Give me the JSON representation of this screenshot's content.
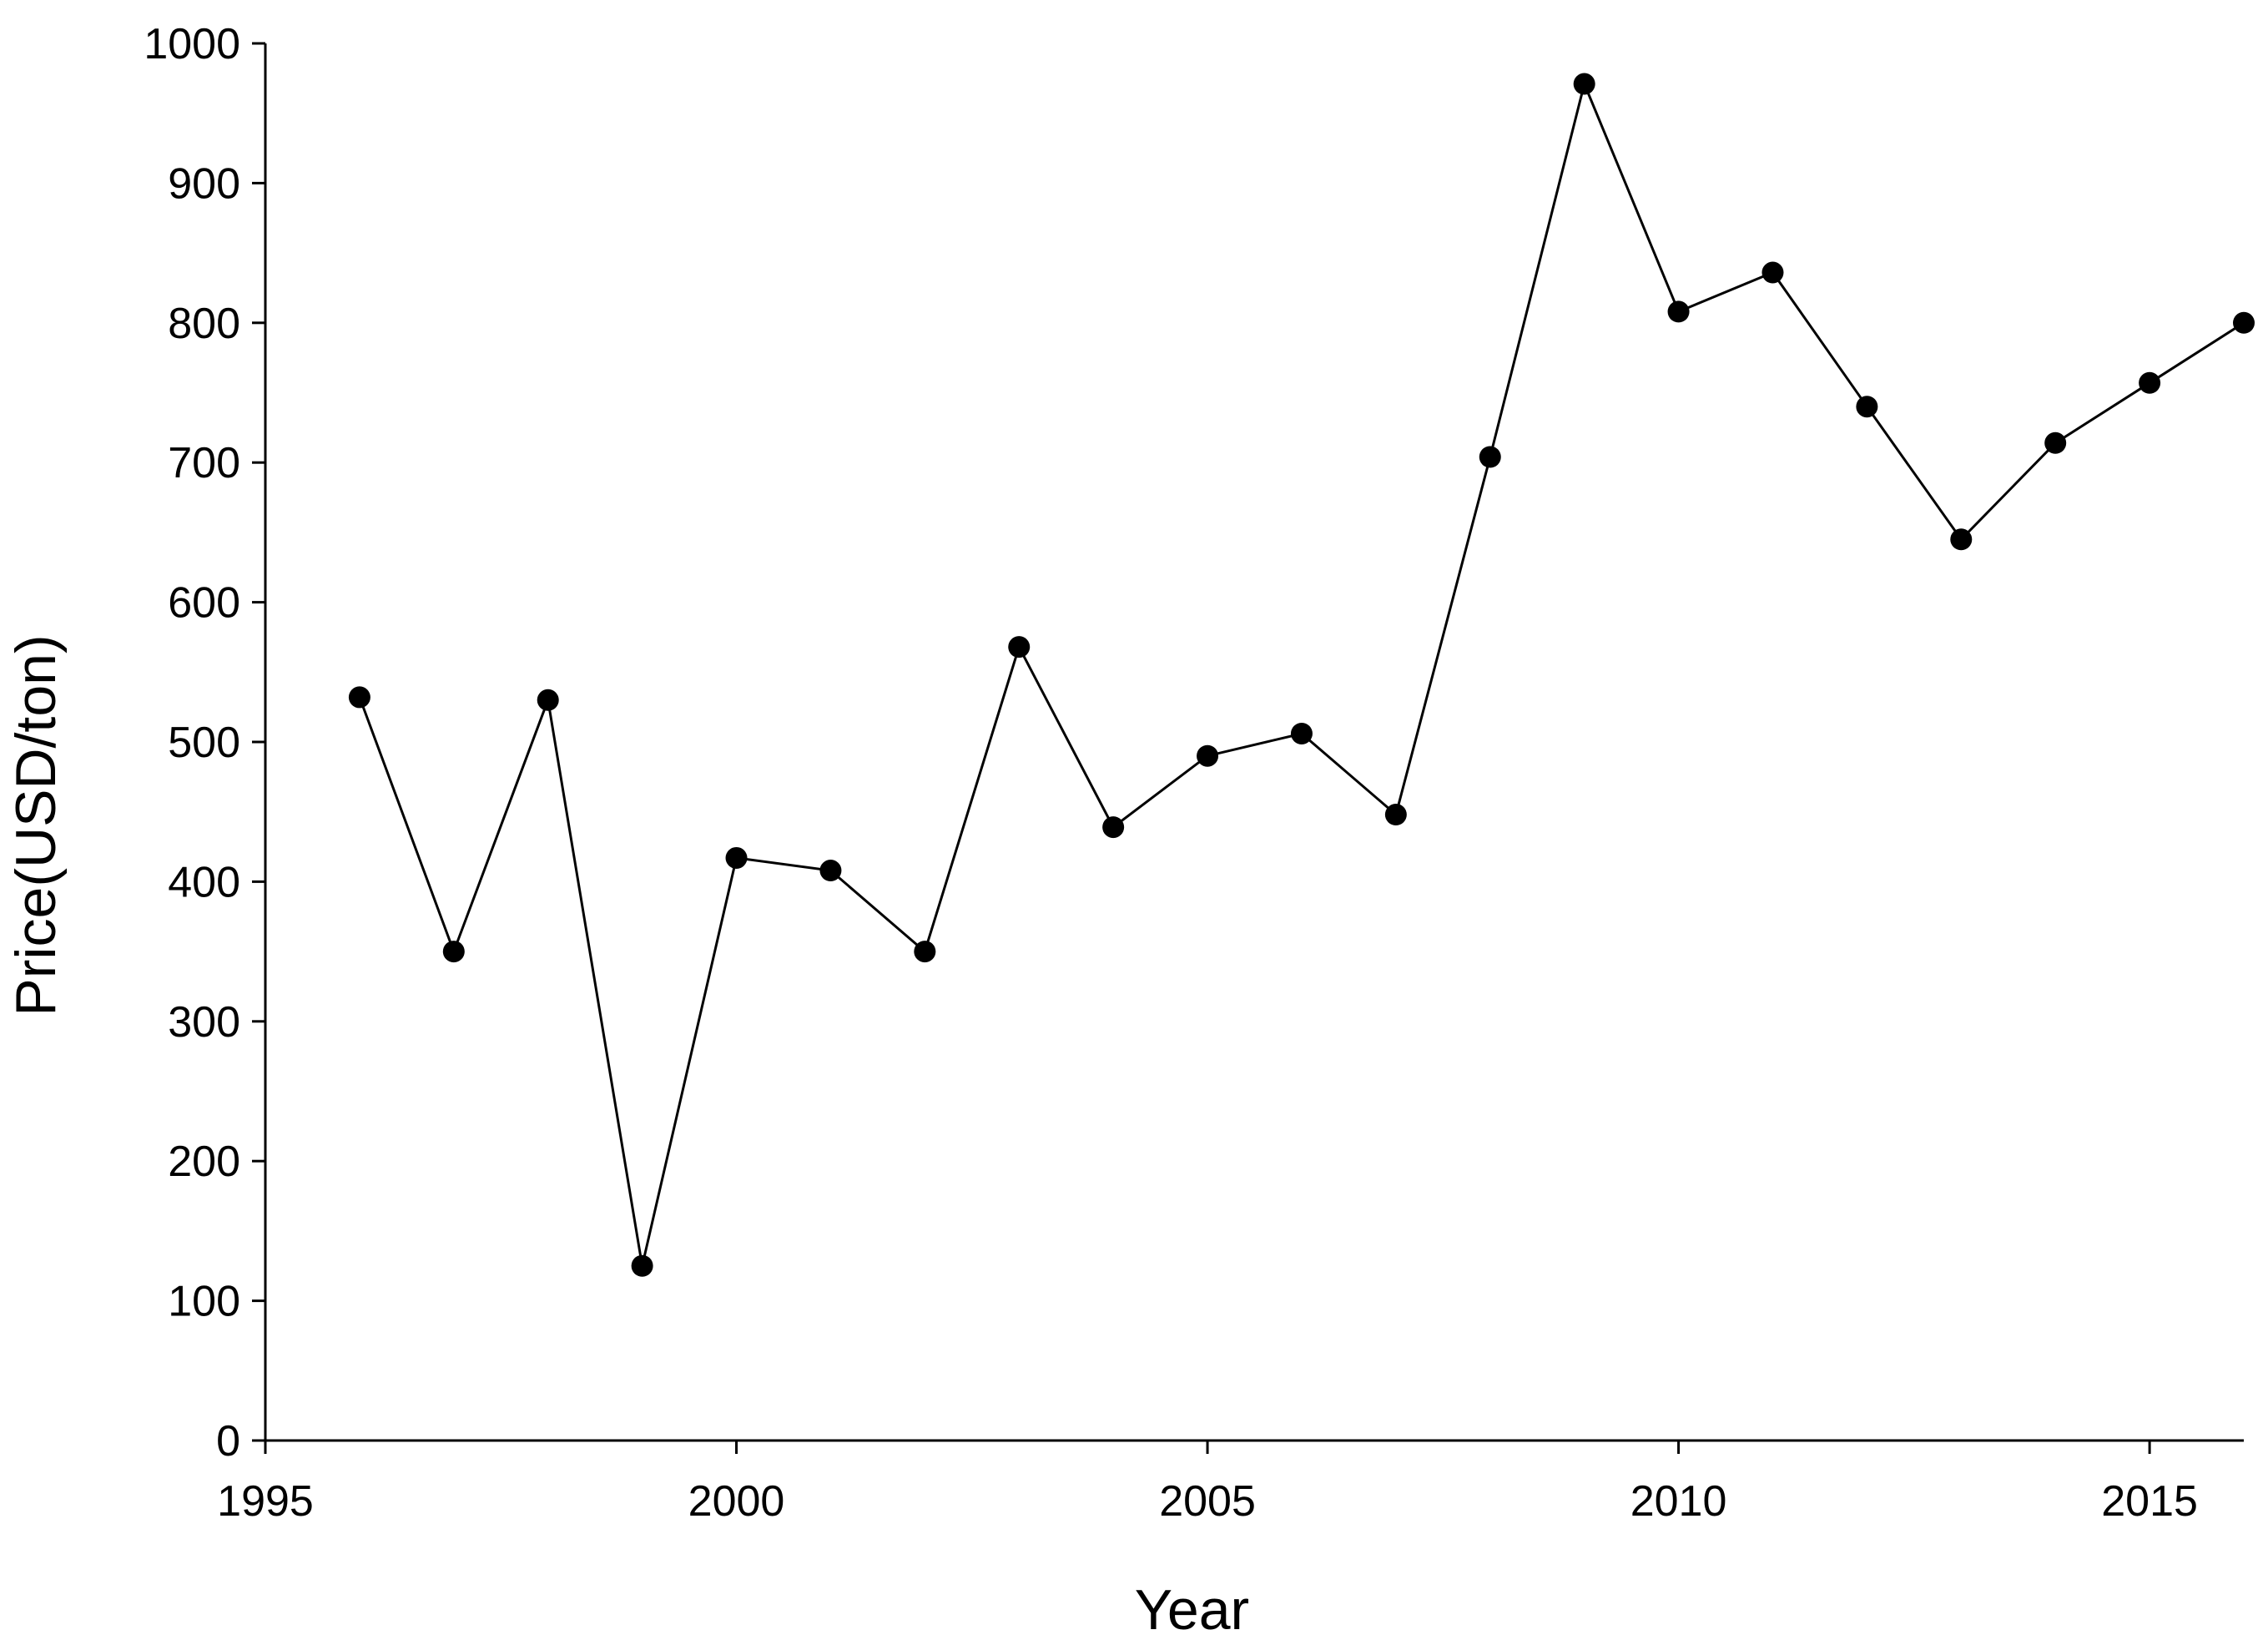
{
  "chart_data": {
    "type": "line",
    "title": "",
    "xlabel": "Year",
    "ylabel": "Price(USD/ton)",
    "xlim": [
      1995,
      2016
    ],
    "ylim": [
      0,
      1000
    ],
    "x_ticks": [
      1995,
      2000,
      2005,
      2010,
      2015
    ],
    "y_ticks": [
      0,
      100,
      200,
      300,
      400,
      500,
      600,
      700,
      800,
      900,
      1000
    ],
    "grid": false,
    "legend": "none",
    "series": [
      {
        "color": "#000000",
        "marker": "circle",
        "x": [
          1996,
          1997,
          1998,
          1999,
          2000,
          2001,
          2002,
          2003,
          2004,
          2005,
          2006,
          2007,
          2008,
          2009,
          2010,
          2011,
          2012,
          2013,
          2014,
          2015,
          2016
        ],
        "y": [
          532,
          350,
          530,
          125,
          417,
          408,
          350,
          568,
          439,
          490,
          506,
          448,
          704,
          971,
          808,
          836,
          740,
          645,
          714,
          757,
          800
        ]
      }
    ]
  }
}
